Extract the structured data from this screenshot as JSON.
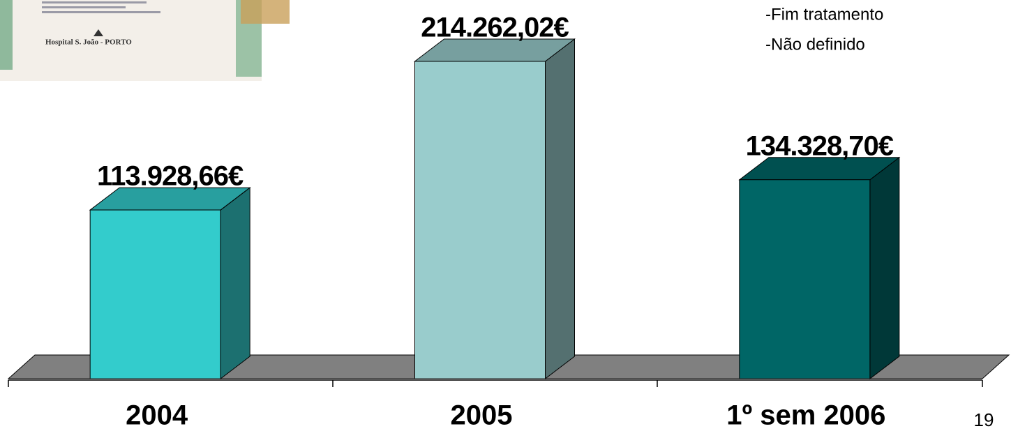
{
  "chart_data": {
    "type": "bar3d",
    "categories": [
      "2004",
      "2005",
      "1º sem 2006"
    ],
    "values": [
      113928.66,
      214262.02,
      134328.7
    ],
    "value_labels": [
      "113.928,66€",
      "214.262,02€",
      "134.328,70€"
    ],
    "colors": [
      "#33cccc",
      "#99cccc",
      "#006666"
    ]
  },
  "slide": {
    "notes": [
      "-Fim tratamento",
      "-Não definido"
    ],
    "image_text": "Hospital S. João - PORTO",
    "page_number": 19
  }
}
